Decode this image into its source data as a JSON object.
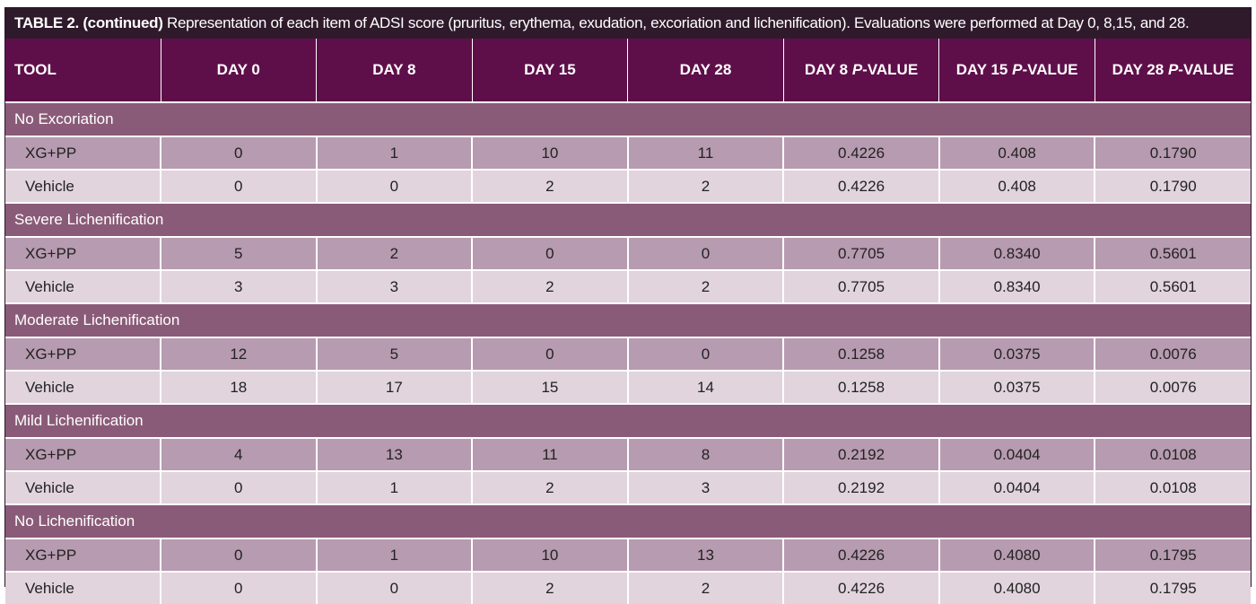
{
  "caption": {
    "label": "TABLE 2. (continued)",
    "text": " Representation of each item of ADSI score (pruritus, erythema, exudation, excoriation and lichenification). Evaluations were performed at Day 0, 8,15, and 28."
  },
  "headers": {
    "tool": "TOOL",
    "day0": "DAY 0",
    "day8": "DAY 8",
    "day15": "DAY 15",
    "day28": "DAY 28",
    "p8_prefix": "DAY 8 ",
    "p15_prefix": "DAY 15 ",
    "p28_prefix": "DAY 28 ",
    "p_letter": "P",
    "p_suffix": "-VALUE"
  },
  "groups": [
    {
      "title": "No Excoriation",
      "rows": [
        [
          "XG+PP",
          "0",
          "1",
          "10",
          "11",
          "0.4226",
          "0.408",
          "0.1790"
        ],
        [
          "Vehicle",
          "0",
          "0",
          "2",
          "2",
          "0.4226",
          "0.408",
          "0.1790"
        ]
      ]
    },
    {
      "title": "Severe Lichenification",
      "rows": [
        [
          "XG+PP",
          "5",
          "2",
          "0",
          "0",
          "0.7705",
          "0.8340",
          "0.5601"
        ],
        [
          "Vehicle",
          "3",
          "3",
          "2",
          "2",
          "0.7705",
          "0.8340",
          "0.5601"
        ]
      ]
    },
    {
      "title": "Moderate Lichenification",
      "rows": [
        [
          "XG+PP",
          "12",
          "5",
          "0",
          "0",
          "0.1258",
          "0.0375",
          "0.0076"
        ],
        [
          "Vehicle",
          "18",
          "17",
          "15",
          "14",
          "0.1258",
          "0.0375",
          "0.0076"
        ]
      ]
    },
    {
      "title": "Mild Lichenification",
      "rows": [
        [
          "XG+PP",
          "4",
          "13",
          "11",
          "8",
          "0.2192",
          "0.0404",
          "0.0108"
        ],
        [
          "Vehicle",
          "0",
          "1",
          "2",
          "3",
          "0.2192",
          "0.0404",
          "0.0108"
        ]
      ]
    },
    {
      "title": "No Lichenification",
      "rows": [
        [
          "XG+PP",
          "0",
          "1",
          "10",
          "13",
          "0.4226",
          "0.4080",
          "0.1795"
        ],
        [
          "Vehicle",
          "0",
          "0",
          "2",
          "2",
          "0.4226",
          "0.4080",
          "0.1795"
        ]
      ]
    }
  ]
}
